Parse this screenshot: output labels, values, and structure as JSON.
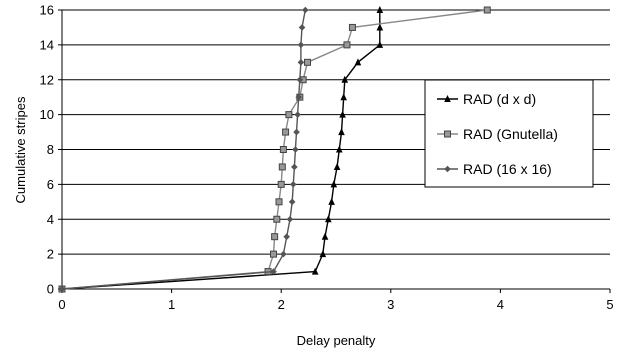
{
  "chart_data": {
    "type": "line",
    "xlabel": "Delay penalty",
    "ylabel": "Cumulative stripes",
    "xlim": [
      0,
      5
    ],
    "ylim": [
      0,
      16
    ],
    "x_ticks": [
      "0",
      "1",
      "2",
      "3",
      "4",
      "5"
    ],
    "y_ticks": [
      "0",
      "2",
      "4",
      "6",
      "8",
      "10",
      "12",
      "14",
      "16"
    ],
    "grid": "horizontal",
    "legend_position": "right",
    "series": [
      {
        "name": "RAD (d x d)",
        "marker": "triangle",
        "color": "#000000",
        "points": [
          [
            0,
            0
          ],
          [
            2.31,
            1
          ],
          [
            2.38,
            2
          ],
          [
            2.4,
            3
          ],
          [
            2.43,
            4
          ],
          [
            2.46,
            5
          ],
          [
            2.48,
            6
          ],
          [
            2.51,
            7
          ],
          [
            2.53,
            8
          ],
          [
            2.55,
            9
          ],
          [
            2.56,
            10
          ],
          [
            2.57,
            11
          ],
          [
            2.58,
            12
          ],
          [
            2.7,
            13
          ],
          [
            2.9,
            14
          ],
          [
            2.9,
            15
          ],
          [
            2.9,
            16
          ]
        ]
      },
      {
        "name": "RAD (Gnutella)",
        "marker": "square",
        "color": "#888888",
        "points": [
          [
            0,
            0
          ],
          [
            1.88,
            1
          ],
          [
            1.93,
            2
          ],
          [
            1.94,
            3
          ],
          [
            1.96,
            4
          ],
          [
            1.98,
            5
          ],
          [
            2.0,
            6
          ],
          [
            2.01,
            7
          ],
          [
            2.02,
            8
          ],
          [
            2.04,
            9
          ],
          [
            2.07,
            10
          ],
          [
            2.17,
            11
          ],
          [
            2.2,
            12
          ],
          [
            2.24,
            13
          ],
          [
            2.6,
            14
          ],
          [
            2.65,
            15
          ],
          [
            3.88,
            16
          ]
        ]
      },
      {
        "name": "RAD (16 x 16)",
        "marker": "diamond",
        "color": "#555555",
        "points": [
          [
            0,
            0
          ],
          [
            1.93,
            1
          ],
          [
            2.02,
            2
          ],
          [
            2.05,
            3
          ],
          [
            2.08,
            4
          ],
          [
            2.1,
            5
          ],
          [
            2.11,
            6
          ],
          [
            2.12,
            7
          ],
          [
            2.13,
            8
          ],
          [
            2.14,
            9
          ],
          [
            2.15,
            10
          ],
          [
            2.16,
            11
          ],
          [
            2.17,
            12
          ],
          [
            2.18,
            13
          ],
          [
            2.18,
            14
          ],
          [
            2.19,
            15
          ],
          [
            2.22,
            16
          ]
        ]
      }
    ]
  }
}
